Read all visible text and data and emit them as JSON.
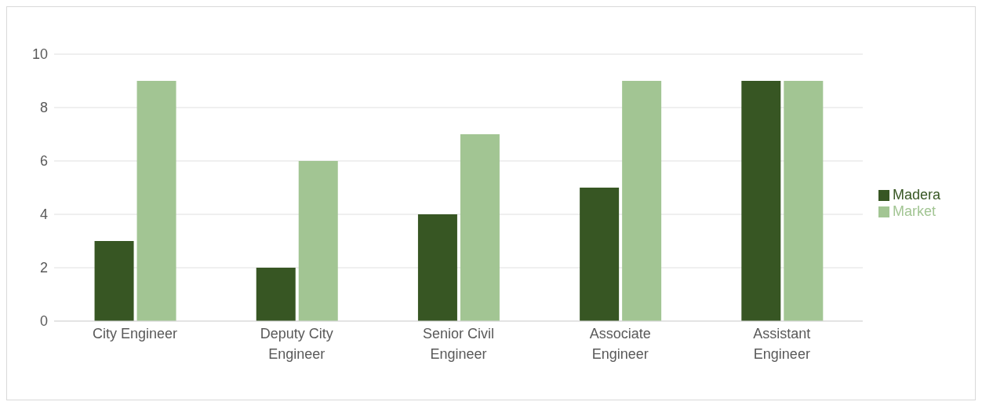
{
  "chart_data": {
    "type": "bar",
    "categories": [
      "City Engineer",
      "Deputy City Engineer",
      "Senior Civil Engineer",
      "Associate Engineer",
      "Assistant Engineer"
    ],
    "series": [
      {
        "name": "Madera",
        "color": "#375623",
        "values": [
          3,
          2,
          4,
          5,
          9
        ]
      },
      {
        "name": "Market",
        "color": "#a2c593",
        "values": [
          9,
          6,
          7,
          9,
          9
        ]
      }
    ],
    "ylim": [
      0,
      10
    ],
    "yticks": [
      0,
      2,
      4,
      6,
      8,
      10
    ],
    "grid": "y",
    "legend": "right"
  }
}
